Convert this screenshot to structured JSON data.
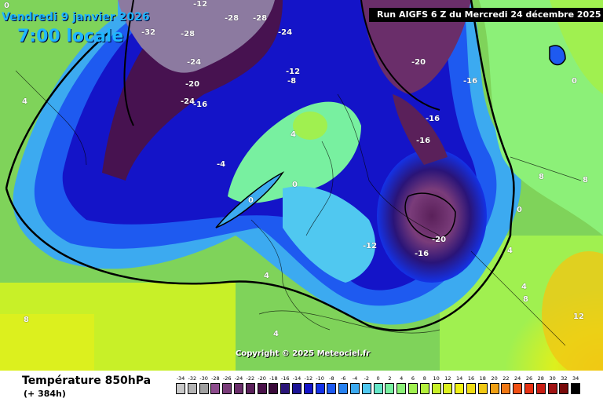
{
  "header": {
    "date": "Vendredi 9 janvier 2026",
    "time": "7:00 locale",
    "run": "Run AIGFS 6 Z du Mercredi 24 décembre 2025"
  },
  "copyright": "Copyright © 2025 Meteociel.fr",
  "footer": {
    "parameter": "Température 850hPa",
    "lead": "(+ 384h)"
  },
  "map_labels": [
    "-32",
    "-12",
    "-28",
    "-28",
    "-28",
    "-24",
    "-24",
    "-20",
    "-24",
    "-16",
    "-12",
    "-8",
    "-20",
    "-16",
    "-16",
    "-16",
    "-4",
    "0",
    "4",
    "4",
    "0",
    "0",
    "4",
    "4",
    "8",
    "8",
    "8",
    "4",
    "4",
    "8",
    "12",
    "-12",
    "-16",
    "-20",
    "0",
    "0"
  ],
  "scale": {
    "values": [
      "-34",
      "-32",
      "-30",
      "-28",
      "-26",
      "-24",
      "-22",
      "-20",
      "-18",
      "-16",
      "-14",
      "-12",
      "-10",
      "-8",
      "-6",
      "-4",
      "-2",
      "0",
      "2",
      "4",
      "6",
      "8",
      "10",
      "12",
      "14",
      "16",
      "18",
      "20",
      "22",
      "24",
      "26",
      "28",
      "30",
      "32",
      "34"
    ],
    "colors": [
      "#c8c8c8",
      "#b4b4b4",
      "#a0a0a0",
      "#8c4b8c",
      "#7a3c7a",
      "#6a2e6a",
      "#5a205a",
      "#4a124a",
      "#3a0a3a",
      "#2a1478",
      "#1c1496",
      "#1414c8",
      "#1432e6",
      "#1e5af0",
      "#2882f0",
      "#3caaf0",
      "#50c8f0",
      "#64e6c8",
      "#78f0a0",
      "#8cf078",
      "#a0f050",
      "#b4f03c",
      "#c8f028",
      "#dcf01e",
      "#f0f014",
      "#f0dc14",
      "#f0c814",
      "#f0a014",
      "#f07814",
      "#f05014",
      "#e63214",
      "#c81e14",
      "#a01414",
      "#780a0a",
      "#000000"
    ]
  }
}
